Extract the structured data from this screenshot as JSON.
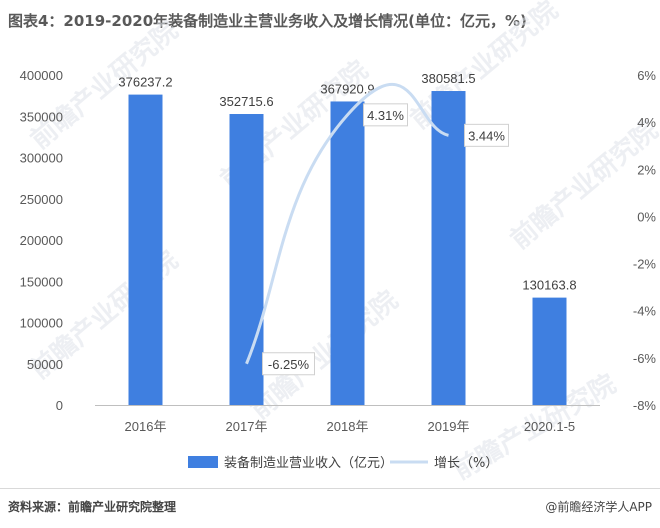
{
  "title": "图表4：2019-2020年装备制造业主营业务收入及增长情况(单位：亿元，%)",
  "source": "资料来源：前瞻产业研究院整理",
  "credit": "@前瞻经济学人APP",
  "watermark": "前瞻产业研究院",
  "colors": {
    "bar": "#3f7fe0",
    "line": "#c9dcf2"
  },
  "chart_data": {
    "type": "bar",
    "categories": [
      "2016年",
      "2017年",
      "2018年",
      "2019年",
      "2020.1-5"
    ],
    "series": [
      {
        "name": "装备制造业营业收入（亿元）",
        "type": "bar",
        "axis": "left",
        "values": [
          376237.2,
          352715.6,
          367920.9,
          380581.5,
          130163.8
        ],
        "labels": [
          "376237.2",
          "352715.6",
          "367920.9",
          "380581.5",
          "130163.8"
        ]
      },
      {
        "name": "增长（%）",
        "type": "line",
        "axis": "right",
        "values": [
          null,
          -6.25,
          4.31,
          3.44,
          null
        ],
        "labels": [
          "",
          "-6.25%",
          "4.31%",
          "3.44%",
          ""
        ]
      }
    ],
    "y_left": {
      "min": 0,
      "max": 400000,
      "ticks": [
        0,
        50000,
        100000,
        150000,
        200000,
        250000,
        300000,
        350000,
        400000
      ],
      "tick_labels": [
        "0",
        "50000",
        "100000",
        "150000",
        "200000",
        "250000",
        "300000",
        "350000",
        "400000"
      ]
    },
    "y_right": {
      "min": -8,
      "max": 6,
      "ticks": [
        -8,
        -6,
        -4,
        -2,
        0,
        2,
        4,
        6
      ],
      "tick_labels": [
        "-8%",
        "-6%",
        "-4%",
        "-2%",
        "0%",
        "2%",
        "4%",
        "6%"
      ]
    },
    "grid": false,
    "legend_position": "bottom"
  }
}
